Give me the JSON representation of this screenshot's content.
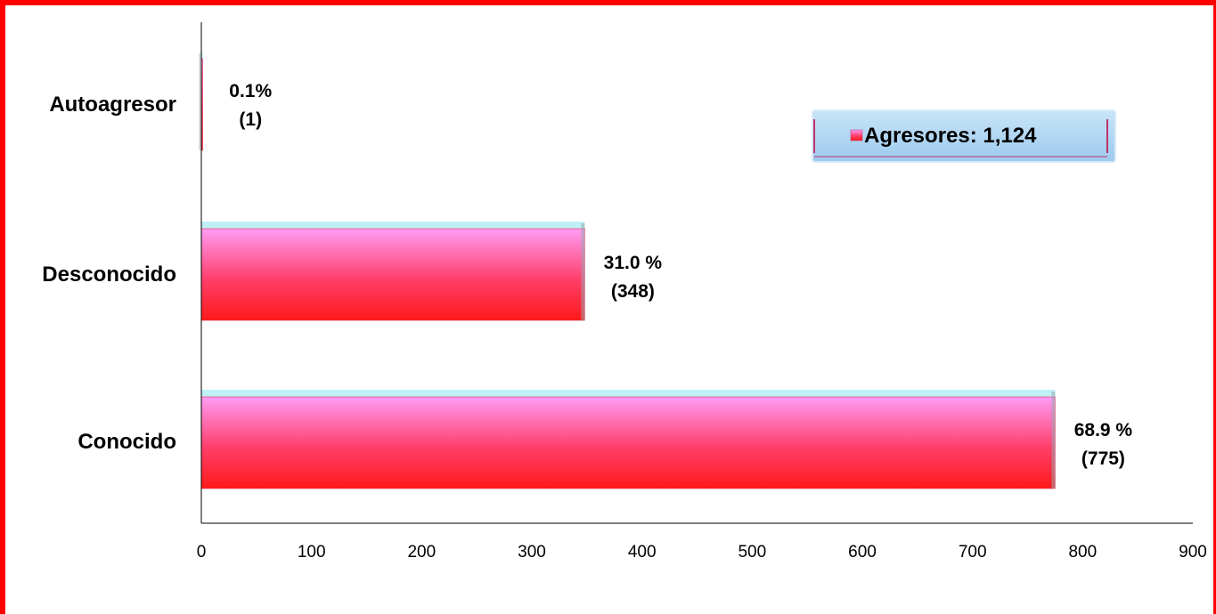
{
  "chart_data": {
    "type": "bar",
    "orientation": "horizontal",
    "categories": [
      "Autoagresor",
      "Desconocido",
      "Conocido"
    ],
    "values": [
      1,
      348,
      775
    ],
    "percent_labels": [
      "0.1%",
      "31.0 %",
      "68.9 %"
    ],
    "count_labels": [
      "(1)",
      "(348)",
      "(775)"
    ],
    "x_ticks": [
      "0",
      "100",
      "200",
      "300",
      "400",
      "500",
      "600",
      "700",
      "800",
      "900"
    ],
    "xlim": [
      0,
      900
    ],
    "grid": false,
    "legend": {
      "label": "Agresores:  1,124",
      "position": "top-right"
    },
    "colors": {
      "bar_top": "#ff9df5",
      "bar_mid": "#ff3f6a",
      "bar_bottom": "#ff1a1a",
      "bar_rim": "#bff0f7",
      "legend_bg": "#a9d3f2",
      "legend_border": "#c0306a",
      "frame": "#ff0000"
    }
  }
}
